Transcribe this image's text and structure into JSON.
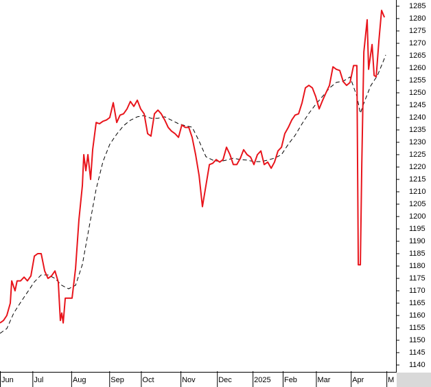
{
  "chart_data": {
    "type": "line",
    "xlim": [
      0,
      250
    ],
    "ylim": [
      1137.5,
      1287.5
    ],
    "xticks": [
      {
        "value": 0,
        "label": "Jun"
      },
      {
        "value": 20.5,
        "label": "Jul"
      },
      {
        "value": 45,
        "label": "Aug"
      },
      {
        "value": 69,
        "label": "Sep"
      },
      {
        "value": 89,
        "label": "Oct"
      },
      {
        "value": 114,
        "label": "Nov"
      },
      {
        "value": 137,
        "label": "Dec"
      },
      {
        "value": 159.5,
        "label": "2025"
      },
      {
        "value": 178.5,
        "label": "Feb"
      },
      {
        "value": 199.5,
        "label": "Mar"
      },
      {
        "value": 221.5,
        "label": "Apr"
      },
      {
        "value": 244,
        "label": "M"
      }
    ],
    "yticks": [
      1140,
      1145,
      1150,
      1155,
      1160,
      1165,
      1170,
      1175,
      1180,
      1185,
      1190,
      1195,
      1200,
      1205,
      1210,
      1215,
      1220,
      1225,
      1230,
      1235,
      1240,
      1245,
      1250,
      1255,
      1260,
      1265,
      1270,
      1275,
      1280,
      1285
    ],
    "series": [
      {
        "color": "#e8141b",
        "dash": false,
        "x": [
          0,
          2.2,
          4.3,
          6.5,
          7.4,
          9.5,
          10.8,
          13,
          15.2,
          17.3,
          19.5,
          21.7,
          23.8,
          26,
          28.2,
          30.3,
          32.5,
          34.7,
          36.8,
          38.1,
          39,
          39.9,
          41.2,
          43.3,
          45.5,
          47.7,
          49.8,
          52,
          52.9,
          54.2,
          55.5,
          57.2,
          58.5,
          60.7,
          62.8,
          65,
          67.2,
          69.3,
          71.5,
          73.7,
          75.8,
          78,
          80.2,
          82.3,
          84.5,
          86.7,
          88.8,
          91,
          93.2,
          95.3,
          97.5,
          99.7,
          101.8,
          104,
          106.2,
          108.3,
          110.5,
          112.7,
          114.8,
          117,
          119.2,
          121.3,
          123.5,
          125.7,
          127.8,
          130,
          132.2,
          134.3,
          136.5,
          138.7,
          140.8,
          143,
          145.2,
          147.3,
          149.5,
          151.7,
          153.8,
          156,
          158.2,
          160.3,
          162.5,
          164.7,
          166.8,
          169,
          171.2,
          173.3,
          175.5,
          177.7,
          179.8,
          182,
          184.2,
          186.3,
          188.5,
          190.7,
          192.8,
          195,
          197.2,
          199.3,
          201.5,
          203.7,
          205.8,
          208,
          210.2,
          212.3,
          214.5,
          216.7,
          218.8,
          221,
          223.2,
          225.3,
          226.2,
          227.5,
          228.4,
          229.7,
          231.8,
          232.7,
          234,
          234.9,
          236.2,
          237.5,
          239.2,
          240.9,
          242.7
        ],
        "values": [
          1157,
          1158,
          1160,
          1165,
          1174,
          1170,
          1174,
          1174,
          1175.5,
          1174,
          1176,
          1184,
          1185,
          1185,
          1178,
          1175,
          1176,
          1178,
          1173.5,
          1158,
          1161,
          1157,
          1167,
          1167,
          1167,
          1179,
          1198.5,
          1212.5,
          1225,
          1218.5,
          1225,
          1215,
          1227,
          1238,
          1237.5,
          1238.5,
          1239,
          1240,
          1246,
          1238,
          1241,
          1241.5,
          1243.5,
          1246.5,
          1244.5,
          1247,
          1243.5,
          1241.5,
          1233.5,
          1232.5,
          1241.5,
          1243,
          1241.5,
          1239,
          1236,
          1234.5,
          1233.5,
          1232,
          1237,
          1236,
          1236,
          1232,
          1225,
          1216.5,
          1204,
          1212.5,
          1221,
          1221.5,
          1223,
          1222,
          1223,
          1228,
          1225,
          1221,
          1221,
          1223.5,
          1227,
          1225,
          1224,
          1221,
          1225,
          1226.5,
          1221,
          1222,
          1219.5,
          1222,
          1226.5,
          1228,
          1233.5,
          1236,
          1239,
          1241,
          1241.5,
          1246,
          1252,
          1253,
          1252,
          1248.5,
          1243.5,
          1247,
          1250,
          1253,
          1260.5,
          1259.5,
          1259,
          1254.5,
          1253,
          1254.2,
          1261,
          1261,
          1180.5,
          1180.5,
          1221,
          1266.5,
          1279.5,
          1259.5,
          1265.5,
          1269.5,
          1257,
          1256.5,
          1271,
          1283.3,
          1280.5
        ]
      },
      {
        "color": "#000000",
        "dash": true,
        "x": [
          0,
          4.3,
          8.7,
          13,
          17.3,
          21.7,
          26,
          30.3,
          34.7,
          39,
          43.3,
          47.7,
          52,
          56.3,
          60.7,
          65,
          69.3,
          73.7,
          78,
          82.3,
          86.7,
          91,
          95.3,
          99.7,
          104,
          108.3,
          112.7,
          117,
          121.3,
          125.7,
          130,
          134.3,
          138.7,
          143,
          147.3,
          151.7,
          156,
          160.3,
          164.7,
          169,
          173.3,
          177.7,
          182,
          186.3,
          190.7,
          195,
          199.3,
          203.7,
          208,
          212.3,
          216.7,
          221,
          225.3,
          227.5,
          229.7,
          234,
          238.3,
          242.7,
          243.5
        ],
        "values": [
          1152.8,
          1154.7,
          1161,
          1165.3,
          1169.4,
          1173.6,
          1176.4,
          1176.4,
          1175,
          1172.2,
          1170.8,
          1172.2,
          1180.6,
          1195.8,
          1211.1,
          1222.2,
          1229.2,
          1233.3,
          1236.7,
          1238.9,
          1240.3,
          1240.8,
          1239.7,
          1239.7,
          1240.3,
          1238.9,
          1237.5,
          1236.7,
          1236.1,
          1230.5,
          1224.2,
          1222.8,
          1222.2,
          1222.8,
          1223.6,
          1223,
          1222.8,
          1222.2,
          1222.2,
          1222.8,
          1223.6,
          1225,
          1229.2,
          1232.8,
          1237.5,
          1241.7,
          1245.3,
          1248.6,
          1251.9,
          1254.2,
          1254.7,
          1256.4,
          1248.6,
          1241.7,
          1245.8,
          1252.8,
          1257,
          1263.9,
          1265.3
        ]
      }
    ]
  }
}
